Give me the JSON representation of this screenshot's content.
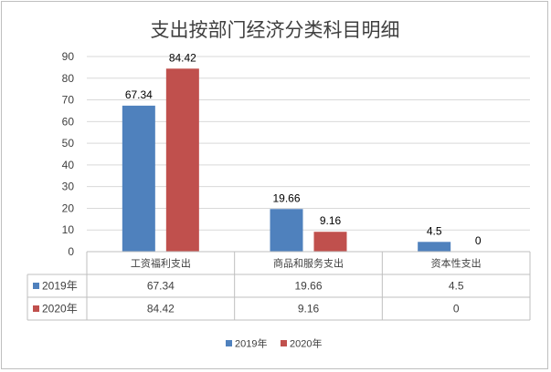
{
  "chart_data": {
    "type": "bar",
    "title": "支出按部门经济分类科目明细",
    "categories": [
      "工资福利支出",
      "商品和服务支出",
      "资本性支出"
    ],
    "series": [
      {
        "name": "2019年",
        "values": [
          67.34,
          19.66,
          4.5
        ],
        "labels": [
          "67.34",
          "19.66",
          "4.5"
        ],
        "color": "#4f81bd"
      },
      {
        "name": "2020年",
        "values": [
          84.42,
          9.16,
          0
        ],
        "labels": [
          "84.42",
          "9.16",
          "0"
        ],
        "color": "#c0504d"
      }
    ],
    "yticks": [
      "0",
      "10",
      "20",
      "30",
      "40",
      "50",
      "60",
      "70",
      "80",
      "90"
    ],
    "ylim": [
      0,
      90
    ],
    "grid": true,
    "legend_position": "bottom",
    "data_table": true
  }
}
